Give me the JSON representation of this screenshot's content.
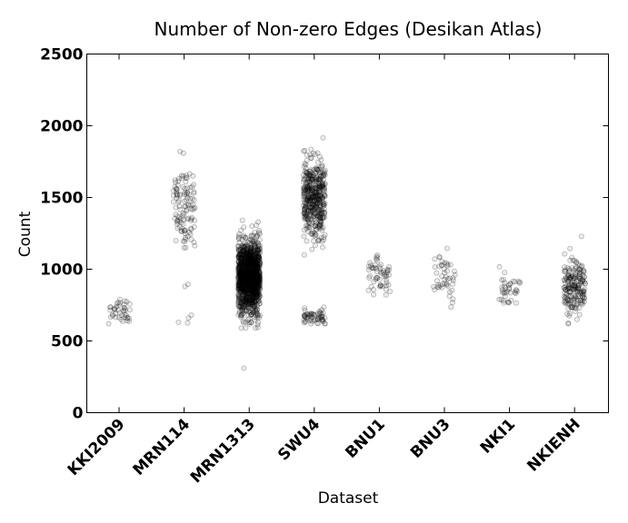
{
  "chart_data": {
    "type": "scatter",
    "title": "Number of Non-zero Edges (Desikan Atlas)",
    "xlabel": "Dataset",
    "ylabel": "Count",
    "ylim": [
      0,
      2500
    ],
    "yticks": [
      0,
      500,
      1000,
      1500,
      2000,
      2500
    ],
    "categories": [
      "KKI2009",
      "MRN114",
      "MRN1313",
      "SWU4",
      "BNU1",
      "BNU3",
      "NKI1",
      "NKIENH"
    ],
    "grid": false,
    "series": [
      {
        "category": "KKI2009",
        "n": 42,
        "center": 700,
        "spread": 45,
        "min": 620,
        "max": 790,
        "outliers": []
      },
      {
        "category": "MRN114",
        "n": 114,
        "center": 1450,
        "spread": 150,
        "min": 1150,
        "max": 1910,
        "outliers": [
          880,
          895,
          680,
          660,
          625,
          630
        ]
      },
      {
        "category": "MRN1313",
        "n": 1313,
        "center": 950,
        "spread": 130,
        "min": 590,
        "max": 1390,
        "outliers": [
          310
        ]
      },
      {
        "category": "SWU4",
        "n": 450,
        "center": 1500,
        "spread": 130,
        "min": 1100,
        "max": 2000,
        "cluster2": {
          "n": 60,
          "center": 670,
          "spread": 25,
          "min": 620,
          "max": 780
        }
      },
      {
        "category": "BNU1",
        "n": 57,
        "center": 970,
        "spread": 80,
        "min": 820,
        "max": 1240,
        "outliers": []
      },
      {
        "category": "BNU3",
        "n": 47,
        "center": 930,
        "spread": 90,
        "min": 680,
        "max": 1170,
        "outliers": []
      },
      {
        "category": "NKI1",
        "n": 40,
        "center": 870,
        "spread": 70,
        "min": 700,
        "max": 1110,
        "outliers": []
      },
      {
        "category": "NKIENH",
        "n": 200,
        "center": 870,
        "spread": 100,
        "min": 620,
        "max": 1230,
        "outliers": []
      }
    ]
  }
}
